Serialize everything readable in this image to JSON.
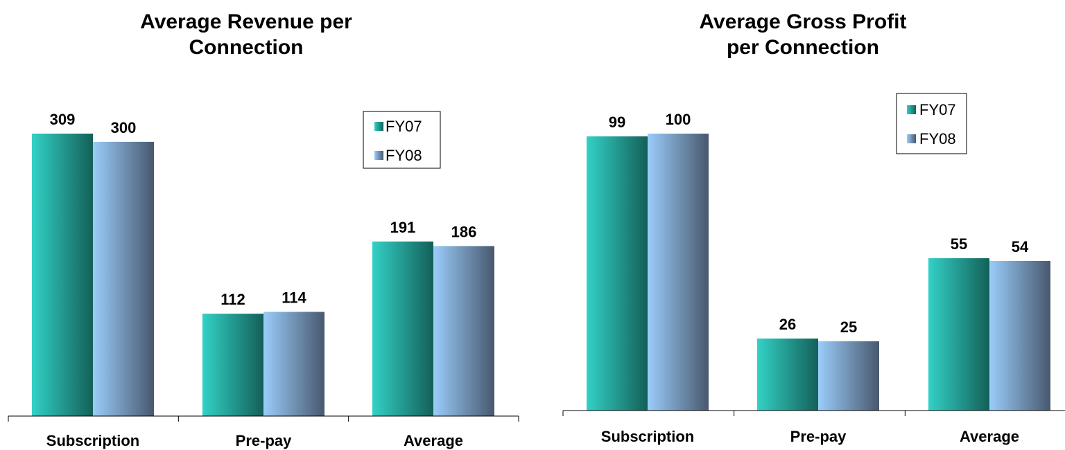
{
  "chart_data": [
    {
      "type": "bar",
      "title_lines": [
        "Average Revenue per",
        "Connection"
      ],
      "categories": [
        "Subscription",
        "Pre-pay",
        "Average"
      ],
      "series": [
        {
          "name": "FY07",
          "values": [
            309,
            112,
            191
          ]
        },
        {
          "name": "FY08",
          "values": [
            300,
            114,
            186
          ]
        }
      ],
      "ylim": [
        0,
        309
      ],
      "grid": false,
      "legend_position": "top-right",
      "colors": {
        "FY07": "#2EC8C0",
        "FY08": "#90C4F2"
      }
    },
    {
      "type": "bar",
      "title_lines": [
        "Average Gross Profit",
        "per Connection"
      ],
      "categories": [
        "Subscription",
        "Pre-pay",
        "Average"
      ],
      "series": [
        {
          "name": "FY07",
          "values": [
            99,
            26,
            55
          ]
        },
        {
          "name": "FY08",
          "values": [
            100,
            25,
            54
          ]
        }
      ],
      "ylim": [
        0,
        100
      ],
      "grid": false,
      "legend_position": "top-right",
      "colors": {
        "FY07": "#2EC8C0",
        "FY08": "#90C4F2"
      }
    }
  ]
}
